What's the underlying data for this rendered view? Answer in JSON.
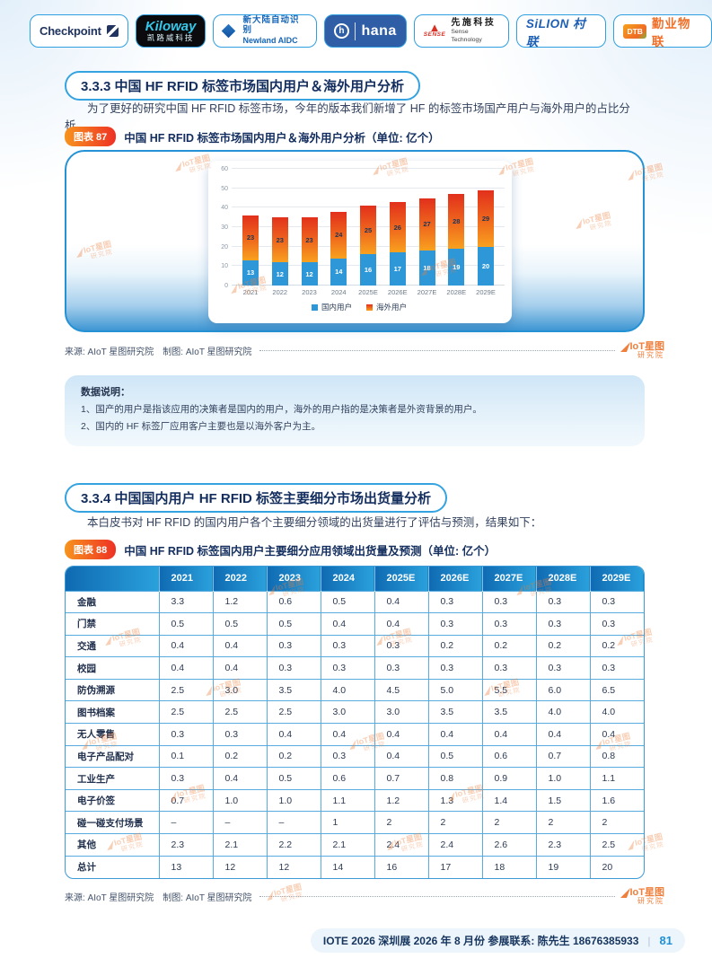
{
  "logos": [
    {
      "id": "checkpoint",
      "text": "Checkpoint"
    },
    {
      "id": "kiloway",
      "text": "Kiloway",
      "sub": "凯路威科技"
    },
    {
      "id": "newland",
      "text": "新大陆自动识别",
      "sub": "Newland AIDC"
    },
    {
      "id": "hana",
      "text": "hana"
    },
    {
      "id": "sense",
      "text": "先施科技",
      "brand": "SENSE",
      "sub": "Sense Technology"
    },
    {
      "id": "silion",
      "text": "SiLION 村联"
    },
    {
      "id": "dtb",
      "badge": "DTB",
      "text": "勤业物联"
    }
  ],
  "sections": {
    "s333": {
      "heading": "3.3.3 中国 HF RFID 标签市场国内用户＆海外用户分析",
      "paragraph": "为了更好的研究中国 HF RFID 标签市场，今年的版本我们新增了 HF 的标签市场国产用户与海外用户的占比分析。"
    },
    "s334": {
      "heading": "3.3.4 中国国内用户 HF RFID 标签主要细分市场出货量分析",
      "paragraph": "本白皮书对 HF RFID 的国内用户各个主要细分领域的出货量进行了评估与预测，结果如下："
    }
  },
  "figures": {
    "f87": {
      "badge": "图表 87",
      "title": "中国 HF RFID 标签市场国内用户＆海外用户分析（单位: 亿个）"
    },
    "f88": {
      "badge": "图表 88",
      "title": "中国 HF RFID 标签国内用户主要细分应用领域出货量及预测（单位: 亿个）"
    }
  },
  "chart_data": {
    "type": "bar",
    "stacked": true,
    "categories": [
      "2021",
      "2022",
      "2023",
      "2024",
      "2025E",
      "2026E",
      "2027E",
      "2028E",
      "2029E"
    ],
    "series": [
      {
        "name": "国内用户",
        "color": "#2e97d8",
        "values": [
          13,
          12,
          12,
          14,
          16,
          17,
          18,
          19,
          20
        ]
      },
      {
        "name": "海外用户",
        "color": "#ef6a1d",
        "values": [
          23,
          23,
          23,
          24,
          25,
          26,
          27,
          28,
          29
        ]
      }
    ],
    "title": "中国 HF RFID 标签市场国内用户＆海外用户分析（单位: 亿个）",
    "xlabel": "",
    "ylabel": "",
    "ylim": [
      0,
      60
    ],
    "yticks": [
      0,
      10,
      20,
      30,
      40,
      50,
      60
    ],
    "grid": true,
    "legend_position": "bottom"
  },
  "source_line": {
    "text": "来源: AIoT 星图研究院　制图: AIoT 星图研究院"
  },
  "brand": {
    "logo_main": "IoT星图",
    "logo_sub": "研究院"
  },
  "data_note": {
    "title": "数据说明：",
    "items": [
      "1、国产的用户是指该应用的决策者是国内的用户，海外的用户指的是决策者是外资背景的用户。",
      "2、国内的 HF 标签厂应用客户主要也是以海外客户为主。"
    ]
  },
  "table": {
    "columns": [
      "",
      "2021",
      "2022",
      "2023",
      "2024",
      "2025E",
      "2026E",
      "2027E",
      "2028E",
      "2029E"
    ],
    "rows": [
      {
        "label": "金融",
        "values": [
          "3.3",
          "1.2",
          "0.6",
          "0.5",
          "0.4",
          "0.3",
          "0.3",
          "0.3",
          "0.3"
        ]
      },
      {
        "label": "门禁",
        "values": [
          "0.5",
          "0.5",
          "0.5",
          "0.4",
          "0.4",
          "0.3",
          "0.3",
          "0.3",
          "0.3"
        ]
      },
      {
        "label": "交通",
        "values": [
          "0.4",
          "0.4",
          "0.3",
          "0.3",
          "0.3",
          "0.2",
          "0.2",
          "0.2",
          "0.2"
        ]
      },
      {
        "label": "校园",
        "values": [
          "0.4",
          "0.4",
          "0.3",
          "0.3",
          "0.3",
          "0.3",
          "0.3",
          "0.3",
          "0.3"
        ]
      },
      {
        "label": "防伪溯源",
        "values": [
          "2.5",
          "3.0",
          "3.5",
          "4.0",
          "4.5",
          "5.0",
          "5.5",
          "6.0",
          "6.5"
        ]
      },
      {
        "label": "图书档案",
        "values": [
          "2.5",
          "2.5",
          "2.5",
          "3.0",
          "3.0",
          "3.5",
          "3.5",
          "4.0",
          "4.0"
        ]
      },
      {
        "label": "无人零售",
        "values": [
          "0.3",
          "0.3",
          "0.4",
          "0.4",
          "0.4",
          "0.4",
          "0.4",
          "0.4",
          "0.4"
        ]
      },
      {
        "label": "电子产品配对",
        "values": [
          "0.1",
          "0.2",
          "0.2",
          "0.3",
          "0.4",
          "0.5",
          "0.6",
          "0.7",
          "0.8"
        ]
      },
      {
        "label": "工业生产",
        "values": [
          "0.3",
          "0.4",
          "0.5",
          "0.6",
          "0.7",
          "0.8",
          "0.9",
          "1.0",
          "1.1"
        ]
      },
      {
        "label": "电子价签",
        "values": [
          "0.7",
          "1.0",
          "1.0",
          "1.1",
          "1.2",
          "1.3",
          "1.4",
          "1.5",
          "1.6"
        ]
      },
      {
        "label": "碰一碰支付场景",
        "values": [
          "–",
          "–",
          "–",
          "1",
          "2",
          "2",
          "2",
          "2",
          "2"
        ]
      },
      {
        "label": "其他",
        "values": [
          "2.3",
          "2.1",
          "2.2",
          "2.1",
          "2.4",
          "2.4",
          "2.6",
          "2.3",
          "2.5"
        ]
      },
      {
        "label": "总计",
        "values": [
          "13",
          "12",
          "12",
          "14",
          "16",
          "17",
          "18",
          "19",
          "20"
        ]
      }
    ]
  },
  "footer": {
    "text": "IOTE 2026 深圳展 2026 年 8 月份  参展联系: 陈先生 18676385933",
    "divider": "|",
    "page_number": "81"
  },
  "colors": {
    "accent_blue": "#2492d4",
    "heading_navy": "#132e5e",
    "badge_orange": "#f7941e",
    "badge_red": "#ee3124",
    "bar_domestic": "#2e97d8",
    "bar_overseas_top": "#e2301c",
    "bar_overseas_bottom": "#f9a11e",
    "table_header_blue": "#1779c0",
    "brand_orange": "#ef7f3c"
  }
}
